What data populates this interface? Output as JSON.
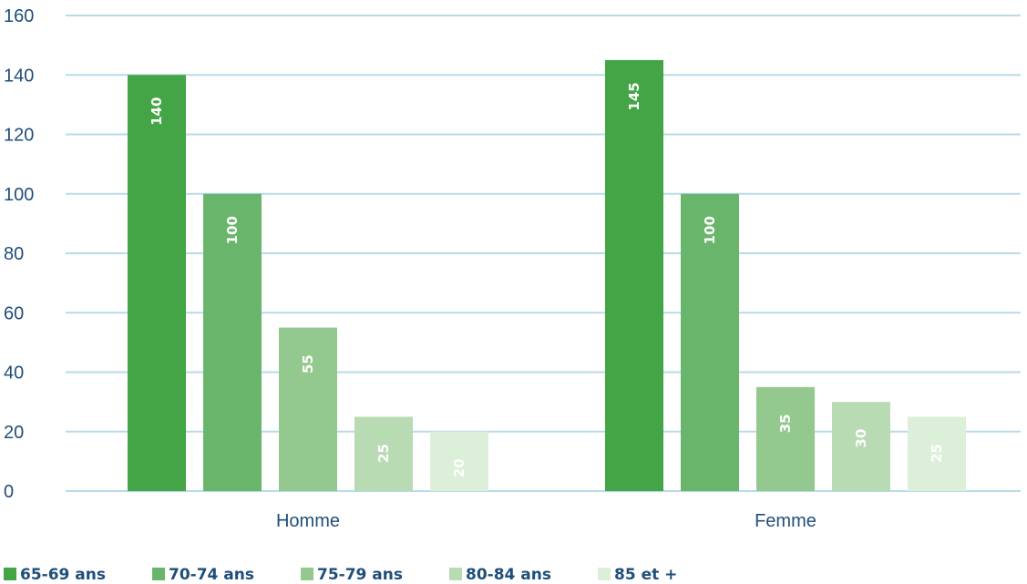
{
  "chart_data": {
    "type": "bar",
    "categories": [
      "Homme",
      "Femme"
    ],
    "series": [
      {
        "name": "65-69 ans",
        "values": [
          140,
          145
        ],
        "color": "#43a546"
      },
      {
        "name": "70-74 ans",
        "values": [
          100,
          100
        ],
        "color": "#6ab56c"
      },
      {
        "name": "75-79 ans",
        "values": [
          55,
          35
        ],
        "color": "#93c98f"
      },
      {
        "name": "80-84 ans",
        "values": [
          25,
          30
        ],
        "color": "#b8dbb3"
      },
      {
        "name": "85 et +",
        "values": [
          20,
          25
        ],
        "color": "#dcefd8"
      }
    ],
    "y_ticks": [
      "0",
      "20",
      "40",
      "60",
      "80",
      "100",
      "120",
      "140",
      "160"
    ],
    "ylim": [
      0,
      160
    ],
    "grid": true,
    "gridline_color": "#b7dbe9",
    "legend_position": "bottom-left",
    "data_labels": true,
    "title": "",
    "xlabel": "",
    "ylabel": ""
  }
}
